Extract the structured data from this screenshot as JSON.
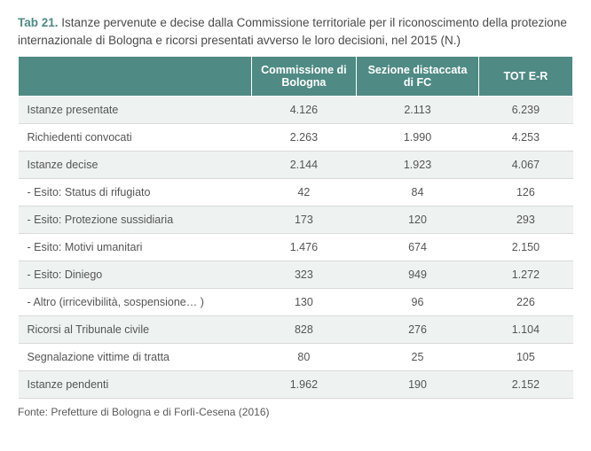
{
  "caption": {
    "label": "Tab 21.",
    "text": "Istanze pervenute e decise dalla Commissione territoriale per il riconoscimento della protezione internazionale di Bologna e ricorsi presentati avverso le loro decisioni, nel 2015 (N.)"
  },
  "table": {
    "header_bg": "#4f8a84",
    "header_fg": "#ffffff",
    "row_alt_bg": "#eef3f2",
    "row_bg": "#ffffff",
    "border_color": "#d9d9d9",
    "columns": [
      "",
      "Commissione di Bologna",
      "Sezione distaccata di FC",
      "TOT E-R"
    ],
    "rows": [
      {
        "label": "Istanze presentate",
        "v": [
          "4.126",
          "2.113",
          "6.239"
        ]
      },
      {
        "label": "Richiedenti convocati",
        "v": [
          "2.263",
          "1.990",
          "4.253"
        ]
      },
      {
        "label": "Istanze decise",
        "v": [
          "2.144",
          "1.923",
          "4.067"
        ]
      },
      {
        "label": "- Esito: Status di rifugiato",
        "v": [
          "42",
          "84",
          "126"
        ]
      },
      {
        "label": "- Esito: Protezione sussidiaria",
        "v": [
          "173",
          "120",
          "293"
        ]
      },
      {
        "label": "- Esito: Motivi umanitari",
        "v": [
          "1.476",
          "674",
          "2.150"
        ]
      },
      {
        "label": "- Esito: Diniego",
        "v": [
          "323",
          "949",
          "1.272"
        ]
      },
      {
        "label": "- Altro (irricevibilità, sospensione… )",
        "v": [
          "130",
          "96",
          "226"
        ]
      },
      {
        "label": "Ricorsi al Tribunale civile",
        "v": [
          "828",
          "276",
          "1.104"
        ]
      },
      {
        "label": "Segnalazione vittime di tratta",
        "v": [
          "80",
          "25",
          "105"
        ]
      },
      {
        "label": "Istanze pendenti",
        "v": [
          "1.962",
          "190",
          "2.152"
        ]
      }
    ]
  },
  "source": "Fonte: Prefetture di Bologna e di Forlì-Cesena (2016)"
}
